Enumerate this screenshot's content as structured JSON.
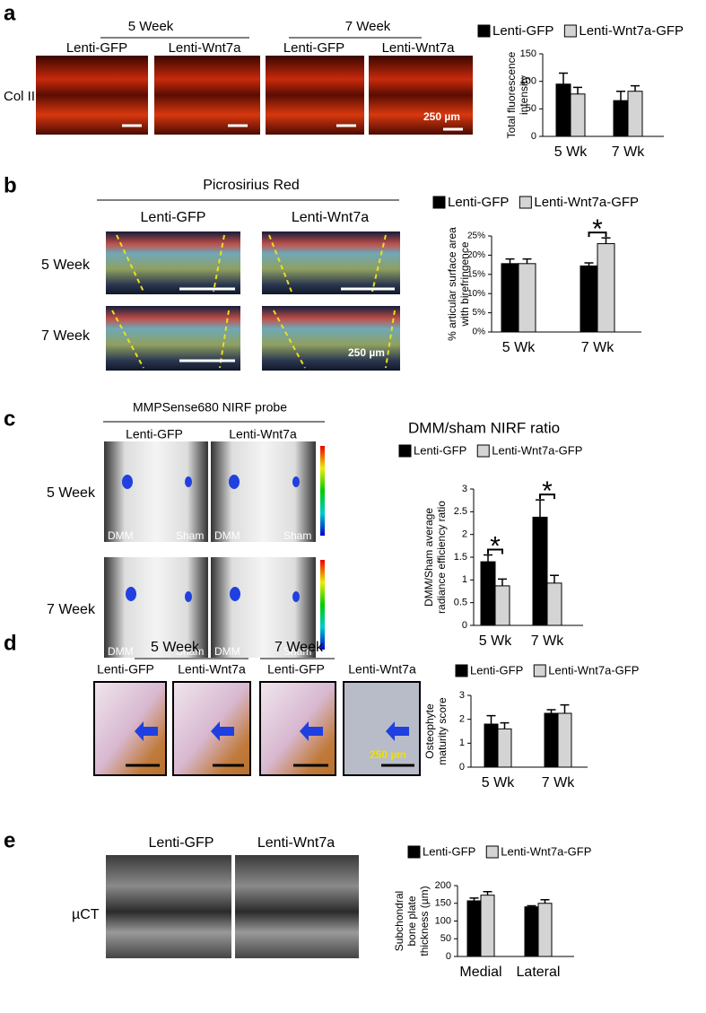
{
  "panels": [
    {
      "label": "a",
      "groups": [
        "5 Week",
        "7 Week"
      ],
      "columns": [
        "Lenti-GFP",
        "Lenti-Wnt7a",
        "Lenti-GFP",
        "Lenti-Wnt7a"
      ],
      "row": "Col II",
      "scale": "250 µm"
    },
    {
      "label": "b",
      "title": "Picrosirius Red",
      "columns": [
        "Lenti-GFP",
        "Lenti-Wnt7a"
      ],
      "rows": [
        "5 Week",
        "7 Week"
      ],
      "scale": "250 µm"
    },
    {
      "label": "c",
      "title": "MMPSense680 NIRF probe",
      "columns": [
        "Lenti-GFP",
        "Lenti-Wnt7a"
      ],
      "rows": [
        "5 Week",
        "7 Week"
      ],
      "image_labels": [
        "DMM",
        "Sham",
        "DMM",
        "Sham",
        "DMM",
        "Sham",
        "DMM",
        "Sham"
      ]
    },
    {
      "label": "d",
      "groups": [
        "5 Week",
        "7 Week"
      ],
      "columns": [
        "Lenti-GFP",
        "Lenti-Wnt7a",
        "Lenti-GFP",
        "Lenti-Wnt7a"
      ],
      "scale": "250 µm"
    },
    {
      "label": "e",
      "columns": [
        "Lenti-GFP",
        "Lenti-Wnt7a"
      ],
      "row": "µCT"
    }
  ],
  "chart_data": [
    {
      "type": "bar",
      "ylabel": [
        "Total fluorescence",
        "intensity"
      ],
      "categories": [
        "5 Wk",
        "7 Wk"
      ],
      "series": [
        {
          "name": "Lenti-GFP",
          "color": "#000000",
          "values": [
            95,
            65
          ],
          "errors": [
            20,
            17
          ]
        },
        {
          "name": "Lenti-Wnt7a-GFP",
          "color": "#d4d4d4",
          "values": [
            77,
            82
          ],
          "errors": [
            12,
            10
          ]
        }
      ],
      "ylim": [
        0,
        150
      ],
      "yticks": [
        0,
        50,
        100,
        150
      ]
    },
    {
      "type": "bar",
      "ylabel": [
        "% articular surface area",
        "with birefringence"
      ],
      "categories": [
        "5 Wk",
        "7 Wk"
      ],
      "series": [
        {
          "name": "Lenti-GFP",
          "color": "#000000",
          "values": [
            17.8,
            17.2
          ],
          "errors": [
            1.2,
            0.8
          ]
        },
        {
          "name": "Lenti-Wnt7a-GFP",
          "color": "#d4d4d4",
          "values": [
            17.8,
            23
          ],
          "errors": [
            1.2,
            1.5
          ]
        }
      ],
      "significance": [
        null,
        "*"
      ],
      "ylim": [
        0,
        25
      ],
      "yticks": [
        {
          "value": 0,
          "label": "0%"
        },
        {
          "value": 5,
          "label": "5%"
        },
        {
          "value": 10,
          "label": "10%"
        },
        {
          "value": 15,
          "label": "15%"
        },
        {
          "value": 20,
          "label": "20%"
        },
        {
          "value": 25,
          "label": "25%"
        }
      ]
    },
    {
      "type": "bar",
      "title": "DMM/sham NIRF ratio",
      "ylabel": [
        "DMM/Sham average",
        "radiance efficiency ratio"
      ],
      "categories": [
        "5 Wk",
        "7 Wk"
      ],
      "series": [
        {
          "name": "Lenti-GFP",
          "color": "#000000",
          "values": [
            1.4,
            2.38
          ],
          "errors": [
            0.15,
            0.38
          ]
        },
        {
          "name": "Lenti-Wnt7a-GFP",
          "color": "#d4d4d4",
          "values": [
            0.87,
            0.93
          ],
          "errors": [
            0.15,
            0.17
          ]
        }
      ],
      "significance": [
        "*",
        "*"
      ],
      "ylim": [
        0,
        3
      ],
      "yticks": [
        0,
        0.5,
        1,
        1.5,
        2,
        2.5,
        3
      ]
    },
    {
      "type": "bar",
      "ylabel": [
        "Osteophyte",
        "maturity score"
      ],
      "categories": [
        "5 Wk",
        "7 Wk"
      ],
      "series": [
        {
          "name": "Lenti-GFP",
          "color": "#000000",
          "values": [
            1.8,
            2.25
          ],
          "errors": [
            0.35,
            0.15
          ]
        },
        {
          "name": "Lenti-Wnt7a-GFP",
          "color": "#d4d4d4",
          "values": [
            1.6,
            2.25
          ],
          "errors": [
            0.25,
            0.35
          ]
        }
      ],
      "ylim": [
        0,
        3
      ],
      "yticks": [
        0,
        1,
        2,
        3
      ]
    },
    {
      "type": "bar",
      "ylabel": [
        "Subchondral",
        "bone plate",
        "thickness (µm)"
      ],
      "categories": [
        "Medial",
        "Lateral"
      ],
      "series": [
        {
          "name": "Lenti-GFP",
          "color": "#000000",
          "values": [
            157,
            140
          ],
          "errors": [
            8,
            3
          ]
        },
        {
          "name": "Lenti-Wnt7a-GFP",
          "color": "#d4d4d4",
          "values": [
            173,
            150
          ],
          "errors": [
            10,
            10
          ]
        }
      ],
      "ylim": [
        0,
        200
      ],
      "yticks": [
        0,
        50,
        100,
        150,
        200
      ]
    }
  ]
}
